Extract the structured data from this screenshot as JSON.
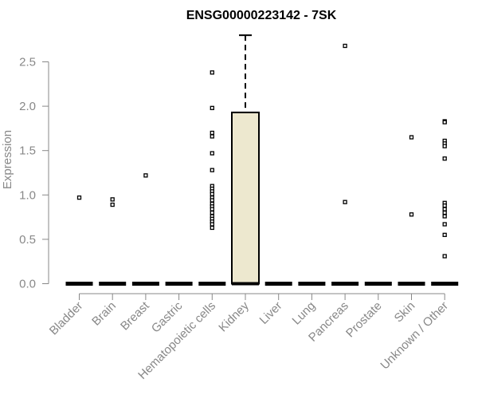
{
  "chart_data": {
    "type": "box",
    "title": "ENSG00000223142 - 7SK",
    "xlabel": "",
    "ylabel": "Expression",
    "ylim": [
      0,
      2.8
    ],
    "yticks": [
      0.0,
      0.5,
      1.0,
      1.5,
      2.0,
      2.5
    ],
    "ytick_labels": [
      "0.0",
      "0.5",
      "1.0",
      "1.5",
      "2.0",
      "2.5"
    ],
    "categories": [
      "Bladder",
      "Brain",
      "Breast",
      "Gastric",
      "Hematopoietic cells",
      "Kidney",
      "Liver",
      "Lung",
      "Pancreas",
      "Prostate",
      "Skin",
      "Unknown / Other"
    ],
    "box_fill": "#ede8cf",
    "boxes": [
      {
        "q1": 0,
        "median": 0,
        "q3": 0,
        "whisker_low": 0,
        "whisker_high": 0
      },
      {
        "q1": 0,
        "median": 0,
        "q3": 0,
        "whisker_low": 0,
        "whisker_high": 0
      },
      {
        "q1": 0,
        "median": 0,
        "q3": 0,
        "whisker_low": 0,
        "whisker_high": 0
      },
      {
        "q1": 0,
        "median": 0,
        "q3": 0,
        "whisker_low": 0,
        "whisker_high": 0
      },
      {
        "q1": 0,
        "median": 0,
        "q3": 0,
        "whisker_low": 0,
        "whisker_high": 0
      },
      {
        "q1": 0,
        "median": 0,
        "q3": 1.93,
        "whisker_low": 0,
        "whisker_high": 2.8
      },
      {
        "q1": 0,
        "median": 0,
        "q3": 0,
        "whisker_low": 0,
        "whisker_high": 0
      },
      {
        "q1": 0,
        "median": 0,
        "q3": 0,
        "whisker_low": 0,
        "whisker_high": 0
      },
      {
        "q1": 0,
        "median": 0,
        "q3": 0,
        "whisker_low": 0,
        "whisker_high": 0
      },
      {
        "q1": 0,
        "median": 0,
        "q3": 0,
        "whisker_low": 0,
        "whisker_high": 0
      },
      {
        "q1": 0,
        "median": 0,
        "q3": 0,
        "whisker_low": 0,
        "whisker_high": 0
      },
      {
        "q1": 0,
        "median": 0,
        "q3": 0,
        "whisker_low": 0,
        "whisker_high": 0
      }
    ],
    "outliers": [
      [
        0.97
      ],
      [
        0.95,
        0.89
      ],
      [
        1.22
      ],
      [],
      [
        2.38,
        1.98,
        1.7,
        1.66,
        1.47,
        1.28,
        1.1,
        1.07,
        1.04,
        1.01,
        0.97,
        0.94,
        0.9,
        0.87,
        0.84,
        0.8,
        0.76,
        0.73,
        0.7,
        0.67,
        0.63
      ],
      [],
      [],
      [],
      [
        2.68,
        0.92
      ],
      [],
      [
        1.65,
        0.78
      ],
      [
        1.83,
        1.82,
        1.61,
        1.58,
        1.55,
        1.41,
        0.91,
        0.88,
        0.84,
        0.8,
        0.76,
        0.67,
        0.55,
        0.31
      ]
    ]
  }
}
